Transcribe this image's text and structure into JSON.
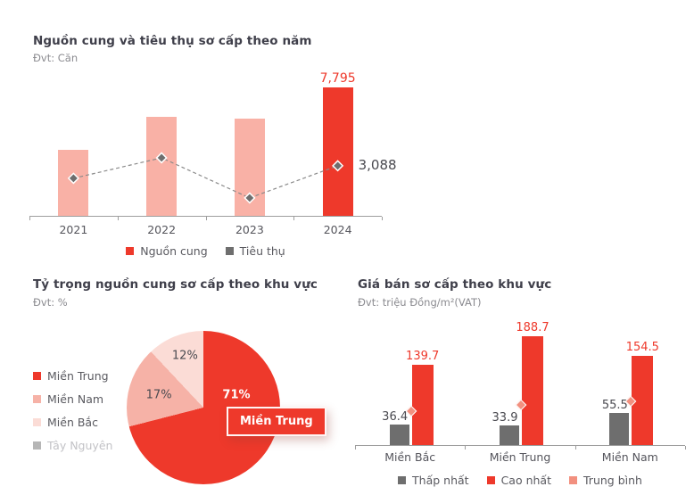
{
  "page": {
    "background": "#ffffff"
  },
  "chart_data": [
    {
      "id": "supply_consumption",
      "type": "bar+line",
      "title": "Nguồn cung và tiêu thụ sơ cấp theo năm",
      "unit_label": "Đvt: Căn",
      "categories": [
        "2021",
        "2022",
        "2023",
        "2024"
      ],
      "ylim": [
        0,
        8000
      ],
      "grid": false,
      "bar_series": {
        "name": "Nguồn cung",
        "values": [
          4000,
          6000,
          5900,
          7795
        ],
        "data_labels": [
          null,
          null,
          null,
          "7,795"
        ],
        "colors": [
          "#f9b1a6",
          "#f9b1a6",
          "#f9b1a6",
          "#ee392b"
        ],
        "note": "only 2024 is labeled in the image; 2021-2023 estimated from bar heights"
      },
      "line_series": {
        "name": "Tiêu thụ",
        "values": [
          2330,
          3570,
          1140,
          3088
        ],
        "data_labels": [
          null,
          null,
          null,
          "3,088"
        ],
        "color": "#6e6e6e",
        "style": "dashed with diamond markers",
        "note": "only 2024 is labeled in the image; 2021-2023 estimated from marker heights"
      },
      "legend": [
        {
          "label": "Nguồn cung",
          "color": "#ee392b"
        },
        {
          "label": "Tiêu thụ",
          "color": "#6e6e6e"
        }
      ],
      "legend_position": "bottom"
    },
    {
      "id": "supply_share",
      "type": "pie",
      "title": "Tỷ trọng nguồn cung sơ cấp theo khu vực",
      "unit_label": "Đvt: %",
      "slices": [
        {
          "label": "Miền Trung",
          "value": 71,
          "display": "71%",
          "color": "#ee392b"
        },
        {
          "label": "Miền Nam",
          "value": 17,
          "display": "17%",
          "color": "#f6b2a7"
        },
        {
          "label": "Miền Bắc",
          "value": 12,
          "display": "12%",
          "color": "#fbdcd6"
        },
        {
          "label": "Tây Nguyên",
          "value": 0,
          "display": null,
          "color": "#b6b6b6",
          "muted": true
        }
      ],
      "tooltip": "Miền Trung",
      "legend_position": "left"
    },
    {
      "id": "price",
      "type": "grouped-bar+point",
      "title": "Giá bán sơ cấp theo khu vực",
      "unit_label": "Đvt: triệu Đồng/m²(VAT)",
      "categories": [
        "Miền Bắc",
        "Miền Trung",
        "Miền Nam"
      ],
      "ylim": [
        0,
        200
      ],
      "grid": false,
      "series": [
        {
          "name": "Thấp nhất",
          "type": "bar",
          "color": "#6e6e6e",
          "values": [
            36.4,
            33.9,
            55.5
          ],
          "data_labels": [
            "36.4",
            "33.9",
            "55.5"
          ]
        },
        {
          "name": "Cao nhất",
          "type": "bar",
          "color": "#ee392b",
          "values": [
            139.7,
            188.7,
            154.5
          ],
          "data_labels": [
            "139.7",
            "188.7",
            "154.5"
          ]
        },
        {
          "name": "Trung bình",
          "type": "point",
          "color": "#f2907f",
          "values": [
            60,
            71,
            77
          ],
          "data_labels": [
            null,
            null,
            null
          ],
          "note": "diamond markers not labeled in the image; values estimated from marker heights"
        }
      ],
      "legend": [
        {
          "label": "Thấp nhất",
          "color": "#6e6e6e"
        },
        {
          "label": "Cao nhất",
          "color": "#ee392b"
        },
        {
          "label": "Trung bình",
          "color": "#f2907f"
        }
      ],
      "legend_position": "bottom"
    }
  ],
  "colors": {
    "accent_red": "#ee392b",
    "pink": "#f6b2a7",
    "light_pink": "#fbdcd6",
    "gray": "#6e6e6e",
    "salmon": "#f2907f",
    "text_dark": "#3f3f4a",
    "text_muted": "#8b8b90"
  }
}
